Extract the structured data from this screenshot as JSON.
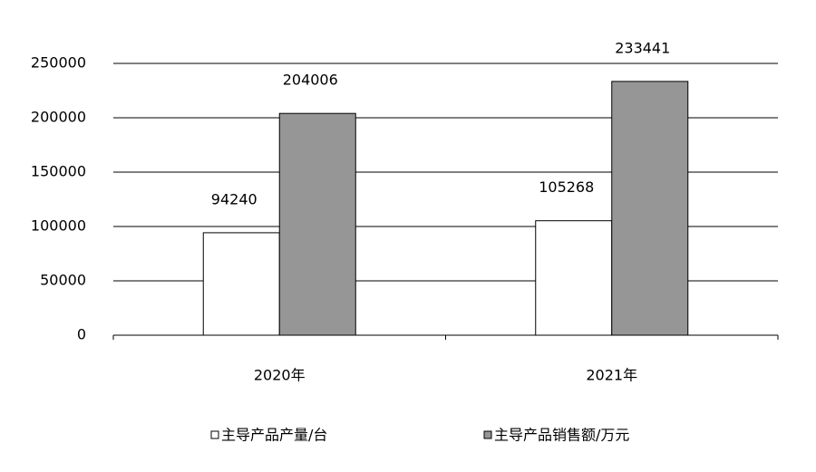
{
  "chart_data": {
    "type": "bar",
    "categories": [
      "2020年",
      "2021年"
    ],
    "series": [
      {
        "name": "主导产品产量/台",
        "color": "#ffffff",
        "values": [
          94240,
          105268
        ]
      },
      {
        "name": "主导产品销售额/万元",
        "color": "#969696",
        "values": [
          204006,
          233441
        ]
      }
    ],
    "ylim": [
      0,
      250000
    ],
    "yticks": [
      0,
      50000,
      100000,
      150000,
      200000,
      250000
    ],
    "grid": true,
    "legend": "bottom"
  }
}
